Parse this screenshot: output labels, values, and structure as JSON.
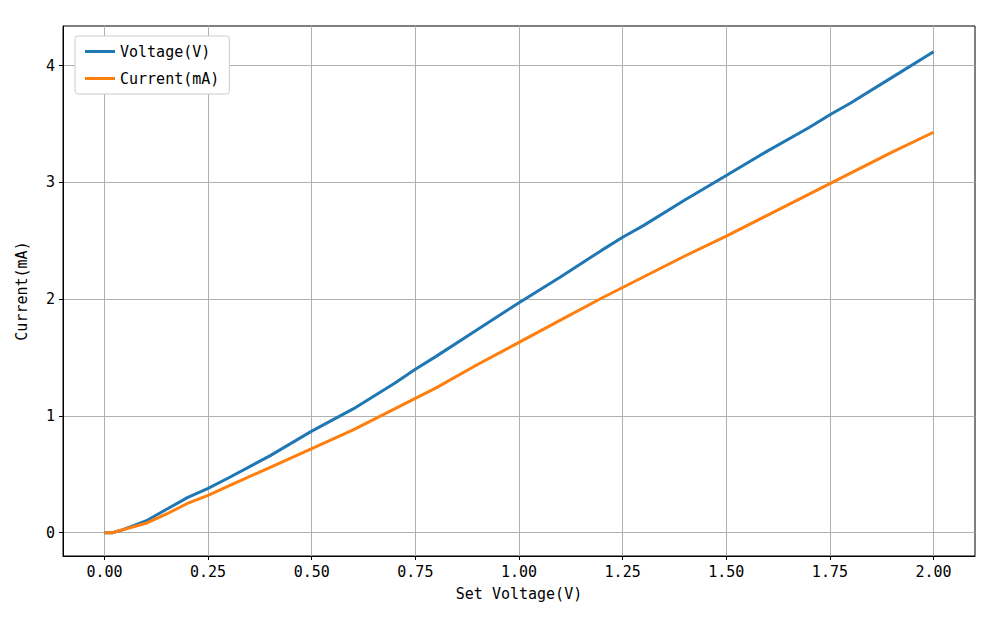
{
  "chart_data": {
    "type": "line",
    "x_label": "Set Voltage(V)",
    "y_label": "Current(mA)",
    "x": [
      0,
      0.02,
      0.04,
      0.1,
      0.15,
      0.2,
      0.25,
      0.3,
      0.4,
      0.5,
      0.6,
      0.7,
      0.75,
      0.8,
      0.9,
      1.0,
      1.1,
      1.2,
      1.25,
      1.3,
      1.4,
      1.5,
      1.6,
      1.7,
      1.75,
      1.8,
      1.9,
      2.0
    ],
    "series": [
      {
        "name": "Voltage(V)",
        "color": "#1f77b4",
        "values": [
          0,
          0,
          0.02,
          0.1,
          0.2,
          0.3,
          0.38,
          0.47,
          0.66,
          0.87,
          1.06,
          1.28,
          1.4,
          1.51,
          1.74,
          1.97,
          2.19,
          2.42,
          2.53,
          2.63,
          2.85,
          3.06,
          3.27,
          3.47,
          3.58,
          3.68,
          3.9,
          4.12
        ]
      },
      {
        "name": "Current(mA)",
        "color": "#ff7f0e",
        "values": [
          0,
          0,
          0.02,
          0.08,
          0.16,
          0.25,
          0.32,
          0.4,
          0.56,
          0.72,
          0.88,
          1.06,
          1.15,
          1.24,
          1.44,
          1.63,
          1.82,
          2.01,
          2.1,
          2.19,
          2.37,
          2.54,
          2.72,
          2.9,
          2.99,
          3.08,
          3.26,
          3.43
        ]
      }
    ],
    "xlim": [
      -0.1,
      2.1
    ],
    "ylim": [
      -0.2,
      4.34
    ],
    "xticks": [
      {
        "value": 0,
        "label": "0.00"
      },
      {
        "value": 0.25,
        "label": "0.25"
      },
      {
        "value": 0.5,
        "label": "0.50"
      },
      {
        "value": 0.75,
        "label": "0.75"
      },
      {
        "value": 1,
        "label": "1.00"
      },
      {
        "value": 1.25,
        "label": "1.25"
      },
      {
        "value": 1.5,
        "label": "1.50"
      },
      {
        "value": 1.75,
        "label": "1.75"
      },
      {
        "value": 2,
        "label": "2.00"
      }
    ],
    "yticks": [
      0,
      1,
      2,
      3,
      4
    ],
    "grid": true,
    "legend": "upper left"
  }
}
